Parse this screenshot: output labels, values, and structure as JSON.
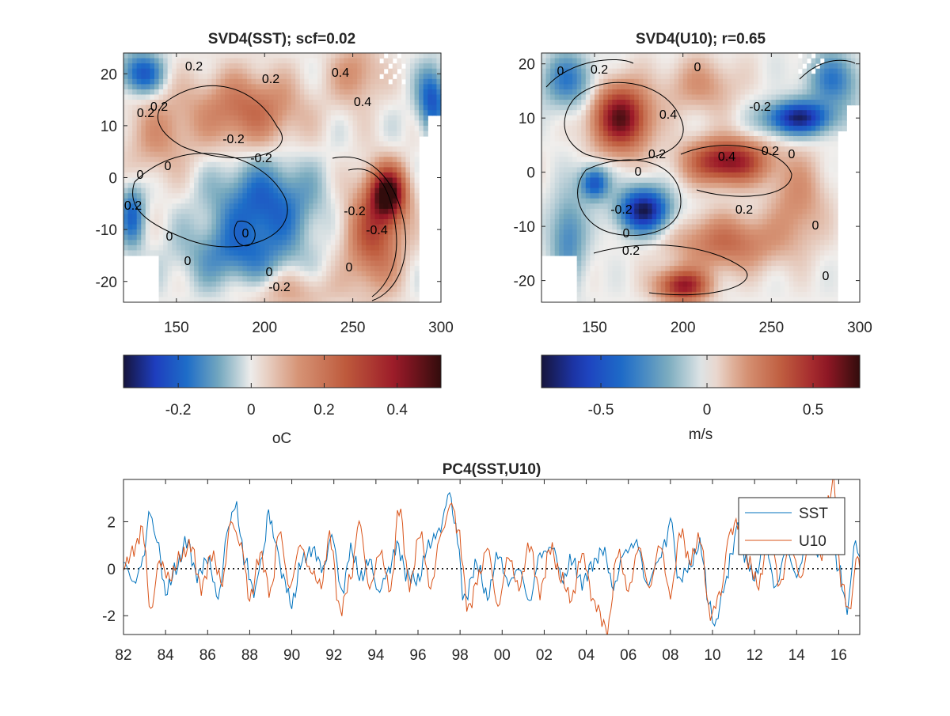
{
  "chart_data": [
    {
      "id": "sst_map",
      "type": "heatmap",
      "title": "SVD4(SST); scf=0.02",
      "x_ticks": [
        150,
        200,
        250,
        300
      ],
      "y_ticks": [
        20,
        10,
        0,
        -10,
        -20
      ],
      "xlim": [
        120,
        300
      ],
      "ylim": [
        -24,
        24
      ],
      "colorbar": {
        "clim": [
          -0.35,
          0.52
        ],
        "ticks": [
          -0.2,
          0,
          0.2,
          0.4
        ],
        "tick_labels": [
          "-0.2",
          "0",
          "0.2",
          "0.4"
        ],
        "label": "oC",
        "colormap": "balance"
      },
      "contour_labels": [
        "0",
        "0.2",
        "0.2",
        "0",
        "0.2",
        "0",
        "-0.2",
        "-0.2",
        "0.2",
        "0.4",
        "0.4",
        "-0.4",
        "-0.2",
        "0",
        "0",
        "0",
        "-0.2",
        "0",
        "0.2"
      ],
      "blobs": [
        {
          "x": 190,
          "y": 13,
          "v": 0.22,
          "sx": 30,
          "sy": 7
        },
        {
          "x": 140,
          "y": 8,
          "v": 0.12,
          "sx": 20,
          "sy": 8
        },
        {
          "x": 270,
          "y": -3,
          "v": 0.48,
          "sx": 10,
          "sy": 5
        },
        {
          "x": 262,
          "y": -11,
          "v": 0.28,
          "sx": 16,
          "sy": 10
        },
        {
          "x": 252,
          "y": 20,
          "v": 0.14,
          "sx": 14,
          "sy": 6
        },
        {
          "x": 200,
          "y": -5,
          "v": -0.2,
          "sx": 28,
          "sy": 8
        },
        {
          "x": 185,
          "y": -15,
          "v": -0.14,
          "sx": 30,
          "sy": 6
        },
        {
          "x": 130,
          "y": 20,
          "v": -0.22,
          "sx": 12,
          "sy": 4
        },
        {
          "x": 295,
          "y": 15,
          "v": -0.22,
          "sx": 8,
          "sy": 6
        },
        {
          "x": 125,
          "y": -7,
          "v": -0.18,
          "sx": 7,
          "sy": 6
        },
        {
          "x": 215,
          "y": -22,
          "v": 0.1,
          "sx": 25,
          "sy": 4
        }
      ]
    },
    {
      "id": "u10_map",
      "type": "heatmap",
      "title": "SVD4(U10); r=0.65",
      "x_ticks": [
        150,
        200,
        250,
        300
      ],
      "y_ticks": [
        20,
        10,
        0,
        -10,
        -20
      ],
      "xlim": [
        120,
        300
      ],
      "ylim": [
        -24,
        22
      ],
      "colorbar": {
        "clim": [
          -0.78,
          0.72
        ],
        "ticks": [
          -0.5,
          0,
          0.5
        ],
        "tick_labels": [
          "-0.5",
          "0",
          "0.5"
        ],
        "label": "m/s",
        "colormap": "balance"
      },
      "contour_labels": [
        "0",
        "0.2",
        "0",
        "0.4",
        "0.2",
        "0",
        "0.4",
        "0.2",
        "-0.2",
        "0",
        "-0.2",
        "0",
        "0.2",
        "0.2",
        "0",
        "0"
      ],
      "blobs": [
        {
          "x": 165,
          "y": 10,
          "v": 0.65,
          "sx": 16,
          "sy": 6
        },
        {
          "x": 225,
          "y": 2,
          "v": 0.6,
          "sx": 22,
          "sy": 4
        },
        {
          "x": 178,
          "y": -7,
          "v": -0.75,
          "sx": 14,
          "sy": 4
        },
        {
          "x": 150,
          "y": -2,
          "v": -0.5,
          "sx": 8,
          "sy": 3
        },
        {
          "x": 265,
          "y": 10,
          "v": -0.7,
          "sx": 18,
          "sy": 3
        },
        {
          "x": 200,
          "y": -21,
          "v": 0.55,
          "sx": 14,
          "sy": 3
        },
        {
          "x": 225,
          "y": -13,
          "v": 0.3,
          "sx": 30,
          "sy": 5
        },
        {
          "x": 285,
          "y": 17,
          "v": -0.35,
          "sx": 14,
          "sy": 5
        },
        {
          "x": 135,
          "y": 17,
          "v": -0.35,
          "sx": 14,
          "sy": 5
        },
        {
          "x": 135,
          "y": -12,
          "v": -0.3,
          "sx": 10,
          "sy": 8
        },
        {
          "x": 265,
          "y": -5,
          "v": 0.2,
          "sx": 15,
          "sy": 8
        },
        {
          "x": 210,
          "y": 16,
          "v": 0.18,
          "sx": 20,
          "sy": 5
        }
      ]
    },
    {
      "id": "pc4",
      "type": "line",
      "title": "PC4(SST,U10)",
      "xlim": [
        1982,
        2017
      ],
      "ylim": [
        -2.8,
        3.8
      ],
      "x_tick_labels": [
        "82",
        "84",
        "86",
        "88",
        "90",
        "92",
        "94",
        "96",
        "98",
        "00",
        "02",
        "04",
        "06",
        "08",
        "10",
        "12",
        "14",
        "16"
      ],
      "y_ticks": [
        2,
        0,
        -2
      ],
      "legend": {
        "position": "top-right"
      },
      "zero_line": {
        "y": 0,
        "style": "dotted"
      },
      "series": [
        {
          "name": "SST",
          "color": "#0072BD",
          "anchors": [
            [
              1982.0,
              0.3
            ],
            [
              1982.5,
              -0.6
            ],
            [
              1983.0,
              0.5
            ],
            [
              1983.2,
              2.5
            ],
            [
              1983.6,
              1.2
            ],
            [
              1984.0,
              -1.0
            ],
            [
              1984.5,
              0.0
            ],
            [
              1985.0,
              1.2
            ],
            [
              1985.5,
              -0.3
            ],
            [
              1986.0,
              0.4
            ],
            [
              1986.5,
              -1.2
            ],
            [
              1987.0,
              1.8
            ],
            [
              1987.3,
              2.7
            ],
            [
              1987.8,
              0.3
            ],
            [
              1988.2,
              -1.0
            ],
            [
              1988.6,
              0.5
            ],
            [
              1988.9,
              2.4
            ],
            [
              1989.2,
              1.2
            ],
            [
              1989.6,
              -0.4
            ],
            [
              1990.0,
              -1.5
            ],
            [
              1990.5,
              0.4
            ],
            [
              1991.0,
              0.8
            ],
            [
              1991.5,
              0.0
            ],
            [
              1991.9,
              1.4
            ],
            [
              1992.4,
              -1.0
            ],
            [
              1992.8,
              0.8
            ],
            [
              1993.3,
              -0.4
            ],
            [
              1993.7,
              0.4
            ],
            [
              1994.1,
              -1.0
            ],
            [
              1994.6,
              -0.1
            ],
            [
              1995.0,
              1.0
            ],
            [
              1995.5,
              -0.3
            ],
            [
              1996.0,
              -0.5
            ],
            [
              1996.5,
              1.0
            ],
            [
              1997.0,
              1.6
            ],
            [
              1997.5,
              3.2
            ],
            [
              1997.8,
              1.7
            ],
            [
              1998.2,
              -1.3
            ],
            [
              1998.8,
              0.2
            ],
            [
              1999.3,
              -1.2
            ],
            [
              1999.8,
              0.6
            ],
            [
              2000.3,
              -0.6
            ],
            [
              2000.8,
              0.0
            ],
            [
              2001.3,
              -1.4
            ],
            [
              2001.8,
              0.6
            ],
            [
              2002.4,
              0.9
            ],
            [
              2002.9,
              -0.5
            ],
            [
              2003.3,
              0.4
            ],
            [
              2003.8,
              -0.6
            ],
            [
              2004.3,
              0.2
            ],
            [
              2004.8,
              0.8
            ],
            [
              2005.3,
              -0.8
            ],
            [
              2005.8,
              0.7
            ],
            [
              2006.4,
              1.1
            ],
            [
              2006.9,
              -0.7
            ],
            [
              2007.4,
              0.3
            ],
            [
              2007.8,
              1.2
            ],
            [
              2008.0,
              2.2
            ],
            [
              2008.4,
              -0.5
            ],
            [
              2008.9,
              0.1
            ],
            [
              2009.4,
              1.0
            ],
            [
              2009.9,
              -1.7
            ],
            [
              2010.1,
              -2.4
            ],
            [
              2010.6,
              -0.7
            ],
            [
              2010.9,
              0.6
            ],
            [
              2011.2,
              1.9
            ],
            [
              2011.6,
              0.4
            ],
            [
              2012.0,
              -0.4
            ],
            [
              2012.5,
              1.1
            ],
            [
              2013.0,
              -0.8
            ],
            [
              2013.5,
              0.8
            ],
            [
              2014.0,
              -0.3
            ],
            [
              2014.5,
              1.1
            ],
            [
              2015.0,
              0.7
            ],
            [
              2015.6,
              1.5
            ],
            [
              2016.0,
              0.0
            ],
            [
              2016.4,
              -1.7
            ],
            [
              2016.8,
              1.2
            ],
            [
              2017.0,
              0.5
            ]
          ]
        },
        {
          "name": "U10",
          "color": "#D95319",
          "anchors": [
            [
              1982.0,
              0.1
            ],
            [
              1982.5,
              0.8
            ],
            [
              1982.9,
              1.7
            ],
            [
              1983.3,
              -1.8
            ],
            [
              1983.7,
              0.3
            ],
            [
              1984.2,
              -0.4
            ],
            [
              1984.7,
              0.5
            ],
            [
              1985.2,
              1.0
            ],
            [
              1985.7,
              -0.8
            ],
            [
              1986.2,
              0.6
            ],
            [
              1986.7,
              -0.6
            ],
            [
              1987.1,
              2.0
            ],
            [
              1987.6,
              1.0
            ],
            [
              1988.0,
              -1.3
            ],
            [
              1988.5,
              0.6
            ],
            [
              1989.0,
              -1.0
            ],
            [
              1989.4,
              1.6
            ],
            [
              1989.9,
              -0.8
            ],
            [
              1990.4,
              1.0
            ],
            [
              1990.9,
              -0.1
            ],
            [
              1991.4,
              -0.7
            ],
            [
              1991.8,
              1.4
            ],
            [
              1992.3,
              -1.8
            ],
            [
              1992.8,
              -0.4
            ],
            [
              1993.2,
              2.0
            ],
            [
              1993.7,
              -0.8
            ],
            [
              1994.2,
              0.7
            ],
            [
              1994.7,
              -0.9
            ],
            [
              1995.1,
              2.6
            ],
            [
              1995.6,
              -0.7
            ],
            [
              1996.1,
              1.5
            ],
            [
              1996.6,
              -0.8
            ],
            [
              1997.1,
              1.5
            ],
            [
              1997.6,
              2.8
            ],
            [
              1997.9,
              1.6
            ],
            [
              1998.4,
              -1.7
            ],
            [
              1998.9,
              -0.3
            ],
            [
              1999.3,
              0.9
            ],
            [
              1999.8,
              -1.6
            ],
            [
              2000.3,
              0.5
            ],
            [
              2000.8,
              -0.8
            ],
            [
              2001.3,
              1.0
            ],
            [
              2001.8,
              -1.0
            ],
            [
              2002.3,
              0.9
            ],
            [
              2002.8,
              -0.4
            ],
            [
              2003.3,
              -1.3
            ],
            [
              2003.8,
              0.6
            ],
            [
              2004.4,
              -1.5
            ],
            [
              2005.0,
              -2.6
            ],
            [
              2005.5,
              0.7
            ],
            [
              2006.0,
              -0.9
            ],
            [
              2006.5,
              0.9
            ],
            [
              2007.0,
              -0.8
            ],
            [
              2007.5,
              1.0
            ],
            [
              2008.0,
              -1.1
            ],
            [
              2008.5,
              1.6
            ],
            [
              2008.9,
              0.3
            ],
            [
              2009.4,
              1.3
            ],
            [
              2009.9,
              -2.0
            ],
            [
              2010.4,
              -1.0
            ],
            [
              2010.8,
              1.5
            ],
            [
              2011.2,
              2.0
            ],
            [
              2011.7,
              0.3
            ],
            [
              2012.2,
              -0.7
            ],
            [
              2012.7,
              1.8
            ],
            [
              2013.2,
              -0.7
            ],
            [
              2013.7,
              1.0
            ],
            [
              2014.2,
              -0.4
            ],
            [
              2014.7,
              1.6
            ],
            [
              2015.2,
              0.5
            ],
            [
              2015.5,
              2.8
            ],
            [
              2015.75,
              3.8
            ],
            [
              2016.1,
              -0.5
            ],
            [
              2016.5,
              -1.8
            ],
            [
              2016.9,
              0.6
            ],
            [
              2017.0,
              0.0
            ]
          ]
        }
      ]
    }
  ]
}
